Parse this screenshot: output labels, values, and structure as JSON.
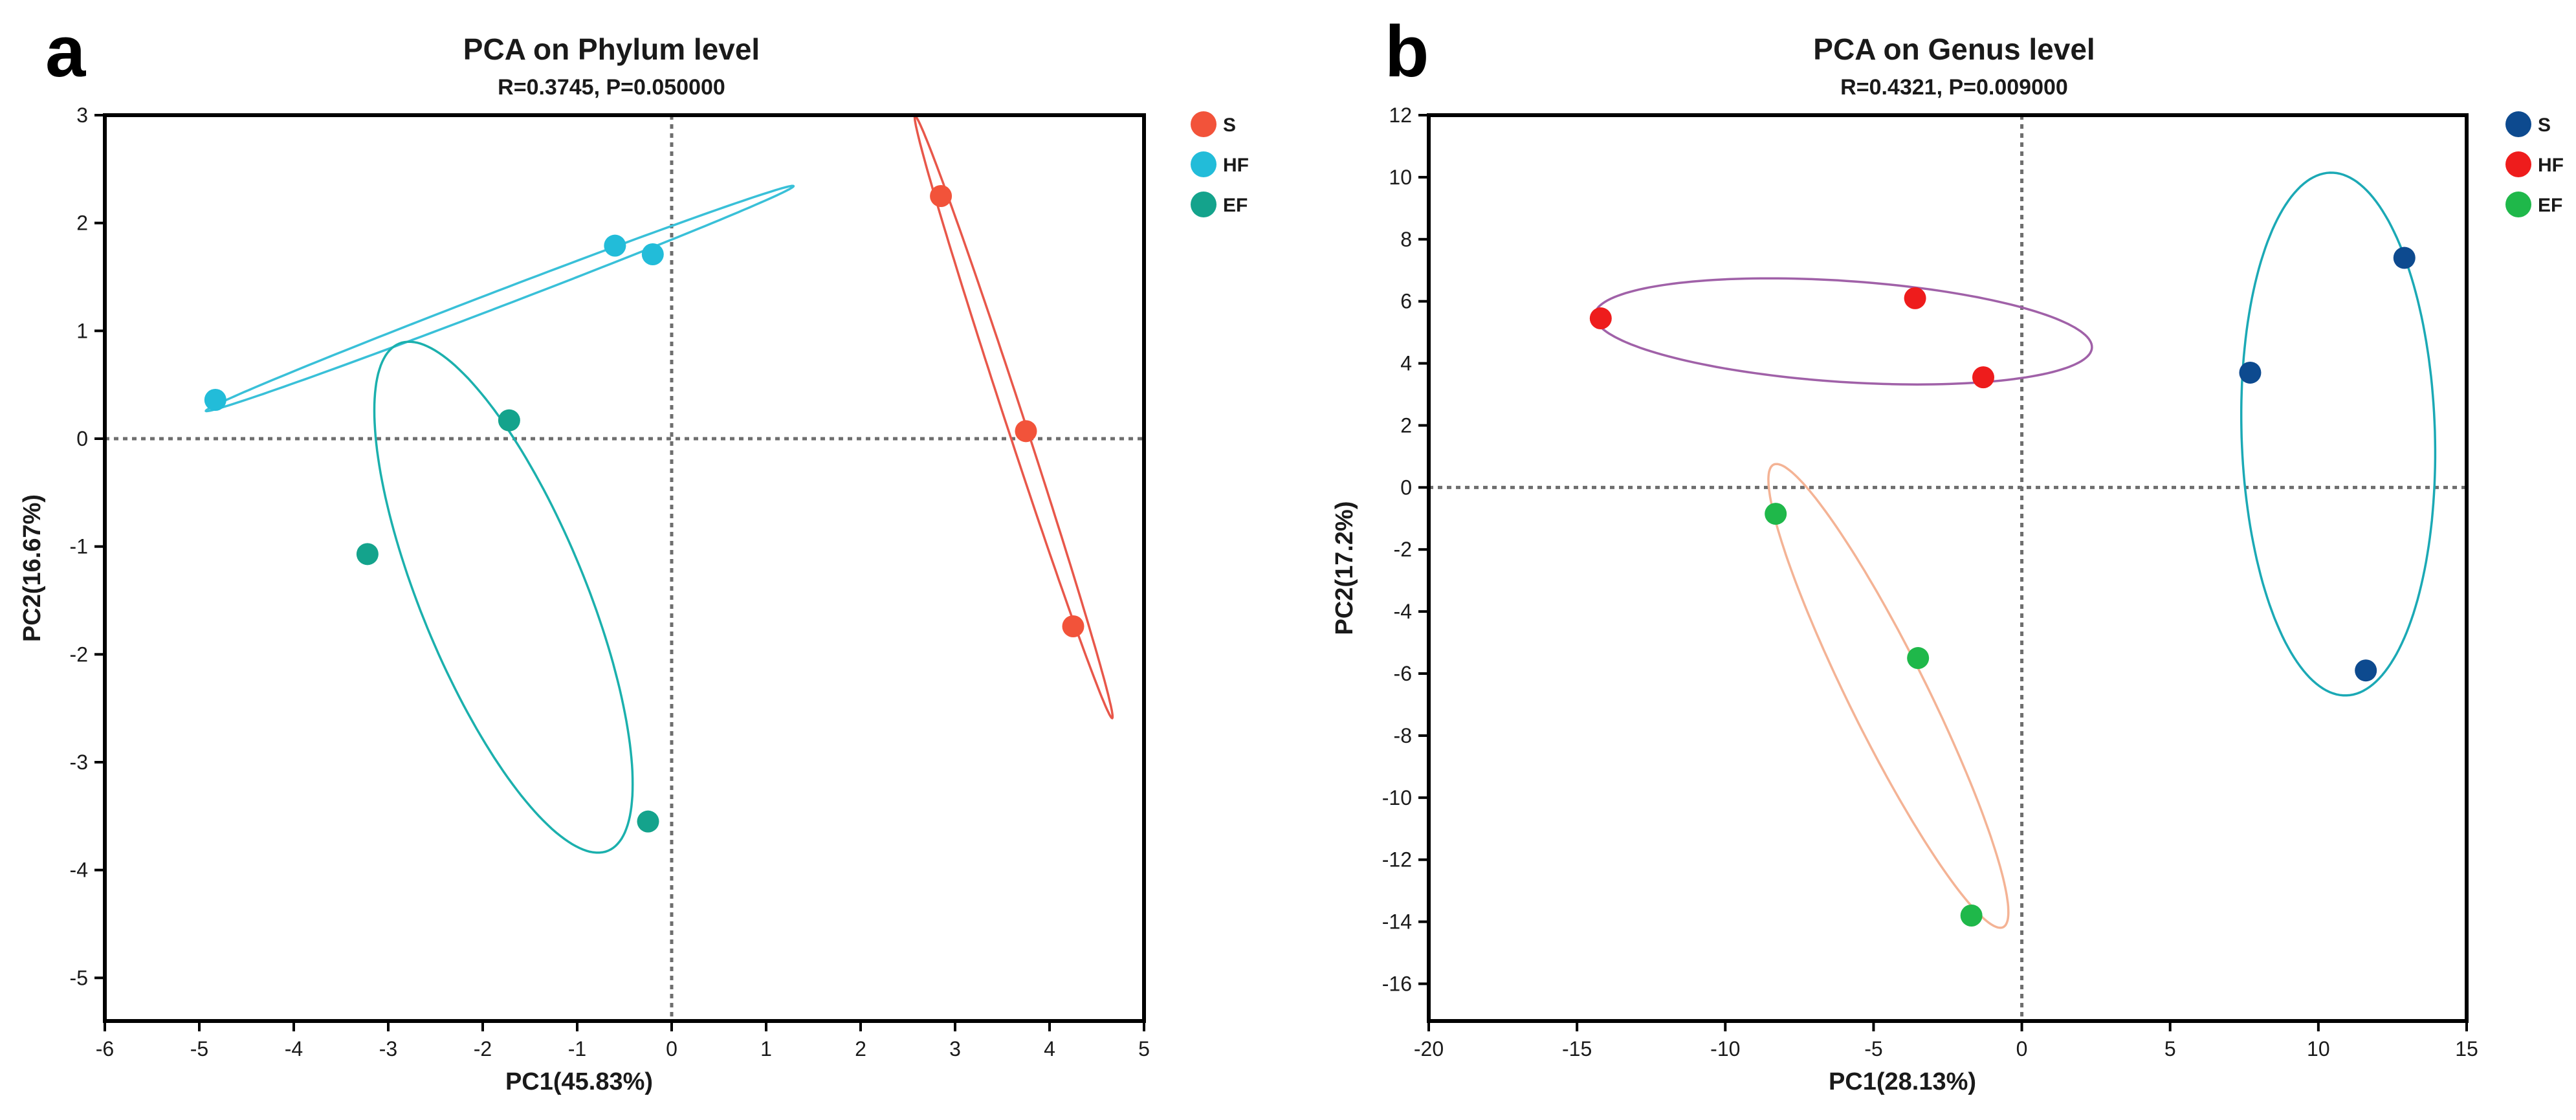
{
  "chart_data": [
    {
      "type": "scatter",
      "panel_letter": "a",
      "title": "PCA on Phylum level",
      "subtitle": "R=0.3745, P=0.050000",
      "xlabel": "PC1(45.83%)",
      "ylabel": "PC2(16.67%)",
      "xlim": [
        -6,
        5
      ],
      "ylim": [
        -5.4,
        3
      ],
      "xticks": [
        -6,
        -5,
        -4,
        -3,
        -2,
        -1,
        0,
        1,
        2,
        3,
        4,
        5
      ],
      "yticks": [
        -5,
        -4,
        -3,
        -2,
        -1,
        0,
        1,
        2,
        3
      ],
      "reference_lines": {
        "x": 0,
        "y": 0,
        "style": "dotted"
      },
      "legend_position": "right",
      "series": [
        {
          "name": "S",
          "color": "#f2533a",
          "points": [
            [
              2.85,
              2.25
            ],
            [
              3.75,
              0.07
            ],
            [
              4.25,
              -1.74
            ]
          ],
          "ellipse": {
            "cx": 3.62,
            "cy": 0.2,
            "a": 2.98,
            "b": 0.095,
            "angle_deg": -69.5,
            "color": "#e8574a"
          }
        },
        {
          "name": "HF",
          "color": "#22bcd9",
          "points": [
            [
              -4.83,
              0.36
            ],
            [
              -0.6,
              1.79
            ],
            [
              -0.2,
              1.71
            ]
          ],
          "ellipse": {
            "cx": -1.82,
            "cy": 1.3,
            "a": 3.28,
            "b": 0.074,
            "angle_deg": 18.53,
            "color": "#39c0d8"
          }
        },
        {
          "name": "EF",
          "color": "#14a38c",
          "points": [
            [
              -1.72,
              0.17
            ],
            [
              -3.22,
              -1.07
            ],
            [
              -0.25,
              -3.55
            ]
          ],
          "ellipse": {
            "cx": -1.78,
            "cy": -1.47,
            "a": 2.6,
            "b": 0.85,
            "angle_deg": -64.16,
            "color": "#1bb0ad"
          }
        }
      ]
    },
    {
      "type": "scatter",
      "panel_letter": "b",
      "title": "PCA on Genus level",
      "subtitle": "R=0.4321, P=0.009000",
      "xlabel": "PC1(28.13%)",
      "ylabel": "PC2(17.2%)",
      "xlim": [
        -20,
        15
      ],
      "ylim": [
        -17.2,
        12
      ],
      "xticks": [
        -20,
        -15,
        -10,
        -5,
        0,
        5,
        10,
        15
      ],
      "yticks": [
        -16,
        -14,
        -12,
        -10,
        -8,
        -6,
        -4,
        -2,
        0,
        2,
        4,
        6,
        8,
        10,
        12
      ],
      "reference_lines": {
        "x": 0,
        "y": 0,
        "style": "dotted"
      },
      "legend_position": "right",
      "series": [
        {
          "name": "S",
          "color": "#0d4a8f",
          "points": [
            [
              7.7,
              3.7
            ],
            [
              12.9,
              7.4
            ],
            [
              11.6,
              -5.9
            ]
          ],
          "ellipse": {
            "cx": 10.67,
            "cy": 1.72,
            "a": 8.43,
            "b": 3.26,
            "angle_deg": -88.1,
            "color": "#1ba9b5"
          }
        },
        {
          "name": "HF",
          "color": "#ee1c1c",
          "points": [
            [
              -14.2,
              5.45
            ],
            [
              -3.6,
              6.1
            ],
            [
              -1.3,
              3.55
            ]
          ],
          "ellipse": {
            "cx": -6.02,
            "cy": 5.03,
            "a": 8.4,
            "b": 1.63,
            "angle_deg": -3.6,
            "color": "#a061a8"
          }
        },
        {
          "name": "EF",
          "color": "#1fb84a",
          "points": [
            [
              -8.3,
              -0.85
            ],
            [
              -3.5,
              -5.5
            ],
            [
              -1.7,
              -13.8
            ]
          ],
          "ellipse": {
            "cx": -4.5,
            "cy": -6.72,
            "a": 8.4,
            "b": 1.3,
            "angle_deg": -62.5,
            "color": "#f4b395"
          }
        }
      ]
    }
  ]
}
